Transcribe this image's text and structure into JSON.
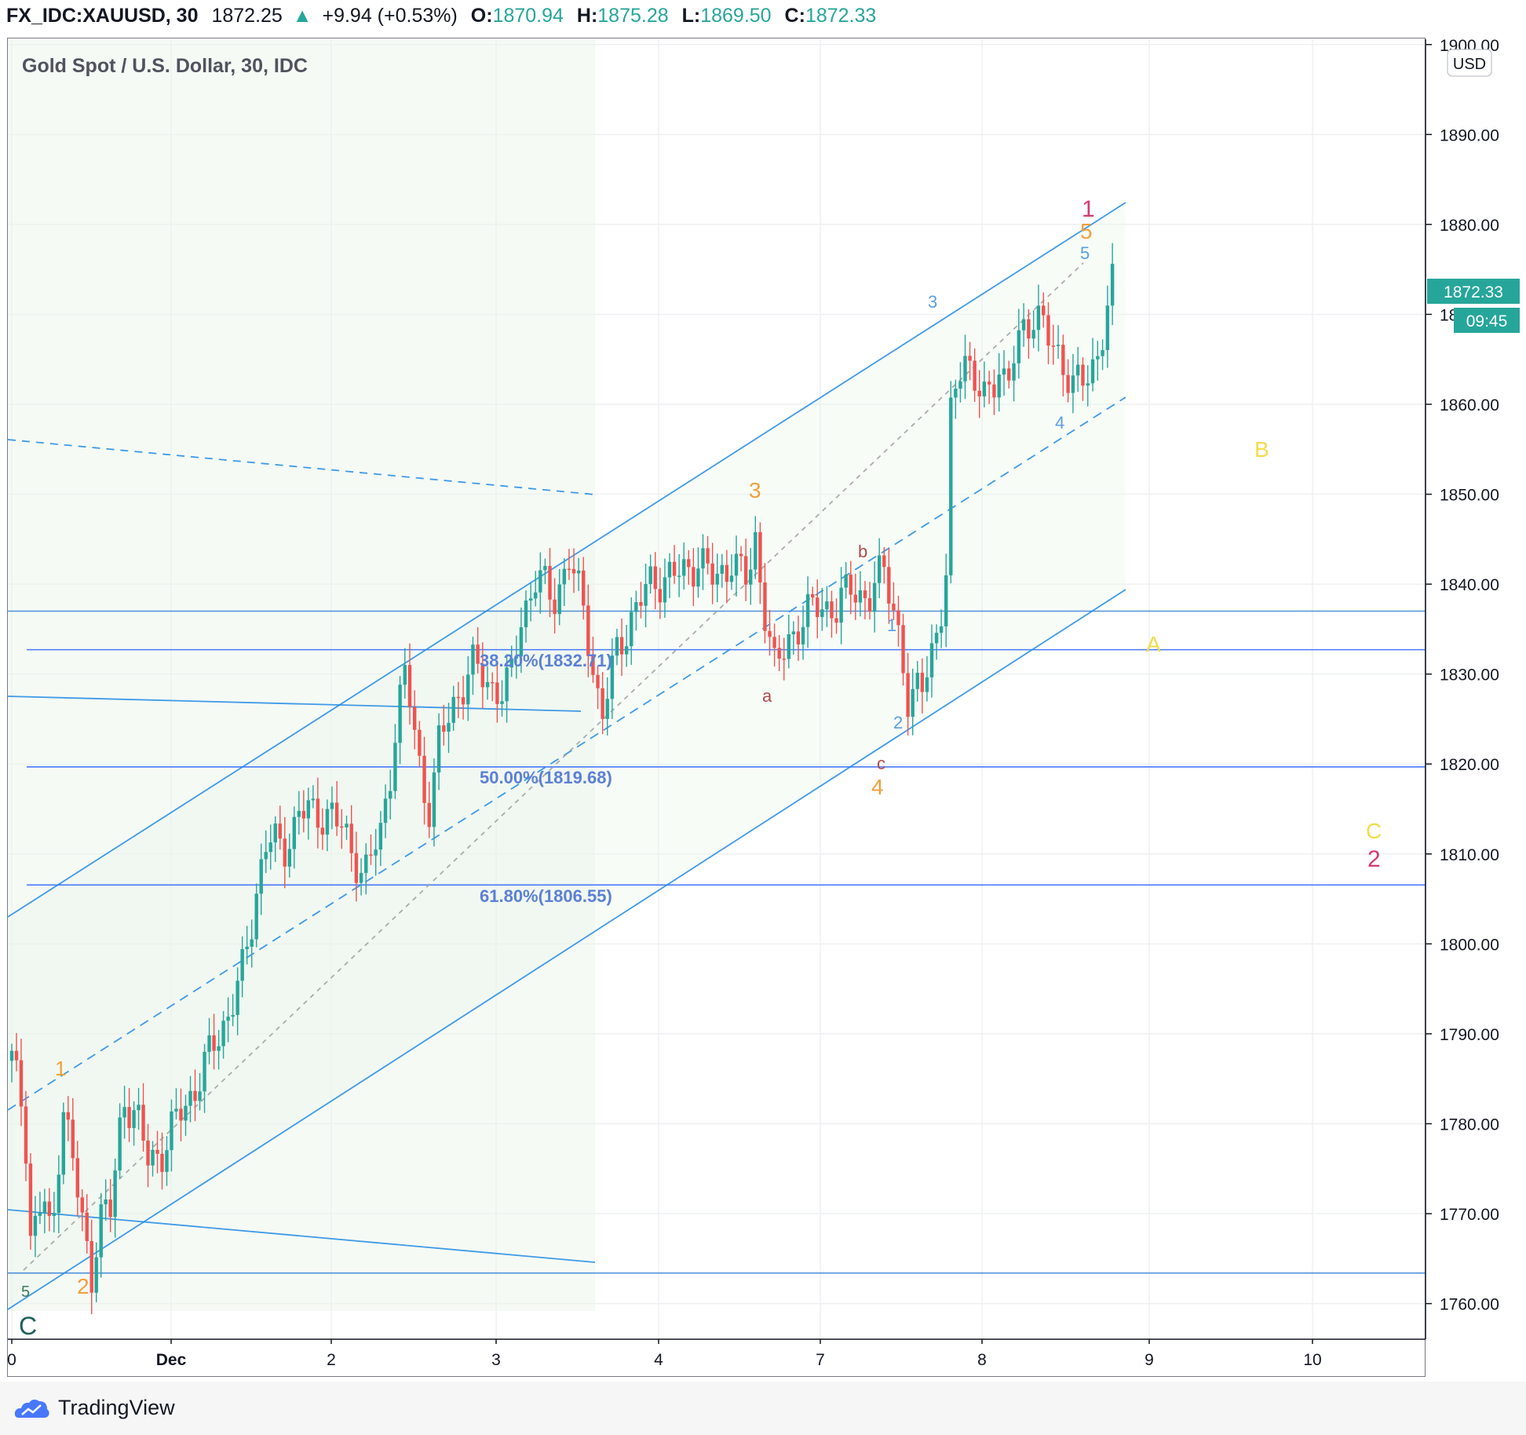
{
  "header": {
    "symbol": "FX_IDC:XAUUSD, 30",
    "price": "1872.25",
    "change": "+9.94 (+0.53%)",
    "open_label": "O:",
    "open": "1870.94",
    "high_label": "H:",
    "high": "1875.28",
    "low_label": "L:",
    "low": "1869.50",
    "close_label": "C:",
    "close": "1872.33"
  },
  "legend": {
    "title": "Gold Spot / U.S. Dollar, 30, IDC"
  },
  "currency_badge": "USD",
  "price_tag": {
    "value": "1872.33",
    "countdown": "09:45"
  },
  "branding": {
    "name": "TradingView"
  },
  "colors": {
    "up": "#26a69a",
    "down": "#ef5350",
    "line": "#2962ff",
    "channel": "#1e88e5",
    "fib": "#4a6fd1"
  },
  "chart_data": {
    "type": "candlestick",
    "title": "Gold Spot / U.S. Dollar, 30, IDC",
    "ylim": [
      1755,
      1900
    ],
    "ylabel": "USD",
    "y_ticks": [
      "1760.00",
      "1770.00",
      "1780.00",
      "1790.00",
      "1800.00",
      "1810.00",
      "1820.00",
      "1830.00",
      "1840.00",
      "1850.00",
      "1860.00",
      "1870.00",
      "1880.00",
      "1890.00",
      "1900.00"
    ],
    "x_ticks": [
      "0",
      "Dec",
      "2",
      "3",
      "4",
      "7",
      "8",
      "9",
      "10"
    ],
    "price_path": [
      [
        0.0,
        1787
      ],
      [
        0.08,
        1781
      ],
      [
        0.12,
        1767
      ],
      [
        0.2,
        1772
      ],
      [
        0.25,
        1766
      ],
      [
        0.32,
        1783
      ],
      [
        0.38,
        1776
      ],
      [
        0.45,
        1768
      ],
      [
        0.5,
        1763
      ],
      [
        0.55,
        1770
      ],
      [
        0.62,
        1770
      ],
      [
        0.7,
        1783
      ],
      [
        0.78,
        1781
      ],
      [
        0.85,
        1776
      ],
      [
        0.95,
        1777
      ],
      [
        1.05,
        1781
      ],
      [
        1.15,
        1784
      ],
      [
        1.25,
        1788
      ],
      [
        1.35,
        1792
      ],
      [
        1.45,
        1797
      ],
      [
        1.5,
        1802
      ],
      [
        1.55,
        1808
      ],
      [
        1.6,
        1812
      ],
      [
        1.7,
        1810
      ],
      [
        1.8,
        1815
      ],
      [
        1.9,
        1814
      ],
      [
        2.0,
        1815
      ],
      [
        2.05,
        1813
      ],
      [
        2.1,
        1811
      ],
      [
        2.2,
        1808
      ],
      [
        2.3,
        1812
      ],
      [
        2.35,
        1818
      ],
      [
        2.4,
        1826
      ],
      [
        2.45,
        1830
      ],
      [
        2.5,
        1824
      ],
      [
        2.55,
        1818
      ],
      [
        2.6,
        1815
      ],
      [
        2.65,
        1822
      ],
      [
        2.75,
        1827
      ],
      [
        2.85,
        1831
      ],
      [
        2.95,
        1829
      ],
      [
        3.05,
        1828
      ],
      [
        3.1,
        1830
      ],
      [
        3.15,
        1836
      ],
      [
        3.25,
        1841
      ],
      [
        3.35,
        1838
      ],
      [
        3.45,
        1843
      ],
      [
        3.55,
        1836
      ],
      [
        3.65,
        1825
      ],
      [
        3.75,
        1833
      ],
      [
        3.85,
        1837
      ],
      [
        3.95,
        1840
      ],
      [
        4.05,
        1841
      ],
      [
        4.15,
        1841
      ],
      [
        4.25,
        1843
      ],
      [
        4.35,
        1840
      ],
      [
        4.45,
        1843
      ],
      [
        4.55,
        1840
      ],
      [
        4.6,
        1845
      ],
      [
        4.65,
        1838
      ],
      [
        4.72,
        1830
      ],
      [
        4.8,
        1834
      ],
      [
        4.9,
        1836
      ],
      [
        5.0,
        1838
      ],
      [
        5.1,
        1837
      ],
      [
        5.2,
        1840
      ],
      [
        5.3,
        1838
      ],
      [
        5.4,
        1842
      ],
      [
        5.45,
        1838
      ],
      [
        5.5,
        1833
      ],
      [
        5.55,
        1824
      ],
      [
        5.6,
        1829
      ],
      [
        5.68,
        1832
      ],
      [
        5.75,
        1836
      ],
      [
        5.78,
        1840
      ],
      [
        5.8,
        1858
      ],
      [
        5.85,
        1865
      ],
      [
        5.9,
        1865
      ],
      [
        5.95,
        1862
      ],
      [
        6.0,
        1860
      ],
      [
        6.05,
        1863
      ],
      [
        6.1,
        1864
      ],
      [
        6.15,
        1861
      ],
      [
        6.2,
        1866
      ],
      [
        6.25,
        1869
      ],
      [
        6.3,
        1870
      ],
      [
        6.35,
        1869
      ],
      [
        6.4,
        1867
      ],
      [
        6.45,
        1866
      ],
      [
        6.5,
        1864
      ],
      [
        6.55,
        1862
      ],
      [
        6.6,
        1862
      ],
      [
        6.65,
        1864
      ],
      [
        6.7,
        1866
      ],
      [
        6.75,
        1871
      ],
      [
        6.78,
        1873
      ]
    ]
  },
  "annotations": {
    "fib_382": "38.20%(1832.71)",
    "fib_500": "50.00%(1819.68)",
    "fib_618": "61.80%(1806.55)",
    "w_orange_1": "1",
    "w_orange_2": "2",
    "w_orange_3": "3",
    "w_orange_4": "4",
    "w_orange_5": "5",
    "w_blue_1": "1",
    "w_blue_2": "2",
    "w_blue_3": "3",
    "w_blue_4": "4",
    "w_blue_5": "5",
    "w_a": "a",
    "w_b": "b",
    "w_c": "c",
    "w_red_1": "1",
    "w_red_2": "2",
    "w_yellow_a": "A",
    "w_yellow_b": "B",
    "w_yellow_c": "C",
    "w_green_5": "5",
    "w_dark_c": "C"
  }
}
